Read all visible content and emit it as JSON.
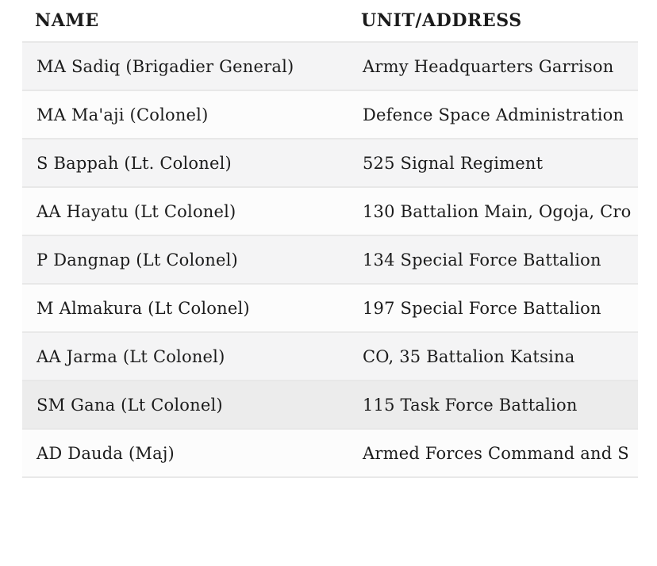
{
  "table": {
    "headers": {
      "name": "NAME",
      "unit": "UNIT/ADDRESS"
    },
    "rows": [
      {
        "name": "MA Sadiq (Brigadier General)",
        "unit": "Army Headquarters Garrison",
        "zebra": true,
        "highlighted": false
      },
      {
        "name": "MA Ma'aji (Colonel)",
        "unit": "Defence Space Administration",
        "zebra": false,
        "highlighted": false
      },
      {
        "name": "S Bappah (Lt. Colonel)",
        "unit": "525 Signal Regiment",
        "zebra": true,
        "highlighted": false
      },
      {
        "name": "AA Hayatu (Lt Colonel)",
        "unit": "130 Battalion Main, Ogoja, Cro",
        "zebra": false,
        "highlighted": false
      },
      {
        "name": "P Dangnap (Lt Colonel)",
        "unit": "134 Special Force Battalion",
        "zebra": true,
        "highlighted": false
      },
      {
        "name": "M Almakura (Lt Colonel)",
        "unit": "197 Special Force Battalion",
        "zebra": false,
        "highlighted": false
      },
      {
        "name": "AA Jarma (Lt Colonel)",
        "unit": "CO, 35 Battalion Katsina",
        "zebra": true,
        "highlighted": false
      },
      {
        "name": "SM Gana (Lt Colonel)",
        "unit": "115 Task Force Battalion",
        "zebra": false,
        "highlighted": true
      },
      {
        "name": "AD Dauda (Maj)",
        "unit": "Armed Forces Command and S",
        "zebra": false,
        "highlighted": false
      }
    ]
  },
  "colors": {
    "zebra_row": "#f4f4f5",
    "base_row": "#fcfcfc",
    "highlight_row": "#ececec",
    "divider": "#e8e8e8",
    "text": "#1b1b1b",
    "page_background": "#ffffff"
  }
}
